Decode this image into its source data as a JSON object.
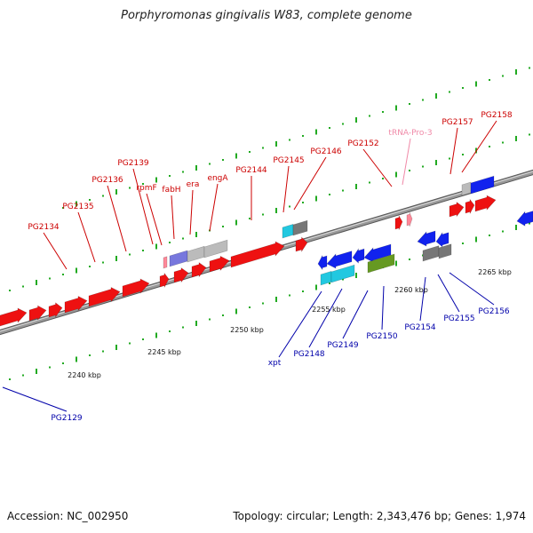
{
  "title": "Porphyromonas gingivalis W83, complete genome",
  "footer": {
    "accession": "Accession: NC_002950",
    "summary": "Topology: circular; Length: 2,343,476 bp; Genes: 1,974"
  },
  "colors": {
    "forward_label": "#cc0000",
    "reverse_label": "#0000aa",
    "trna_label": "#f08aa8",
    "red": "#ee1111",
    "blue": "#1122ee",
    "grey": "#bbbbbb",
    "dark_grey": "#777777",
    "cyan": "#22c8e0",
    "green": "#669922",
    "lavender": "#7777dd",
    "pink": "#ff8899",
    "tick_green": "#22aa22",
    "backbone": "#999999"
  },
  "scale_ticks": [
    "2240 kbp",
    "2245 kbp",
    "2250 kbp",
    "2255 kbp",
    "2260 kbp",
    "2265 kbp"
  ],
  "forward_labels": [
    "PG2134",
    "PG2135",
    "PG2136",
    "PG2139",
    "rpmF",
    "fabH",
    "era",
    "engA",
    "PG2144",
    "PG2145",
    "PG2146",
    "PG2152",
    "tRNA-Pro-3",
    "PG2157",
    "PG2158"
  ],
  "reverse_labels": [
    "PG2129",
    "xpt",
    "PG2148",
    "PG2149",
    "PG2150",
    "PG2154",
    "PG2155",
    "PG2156"
  ]
}
